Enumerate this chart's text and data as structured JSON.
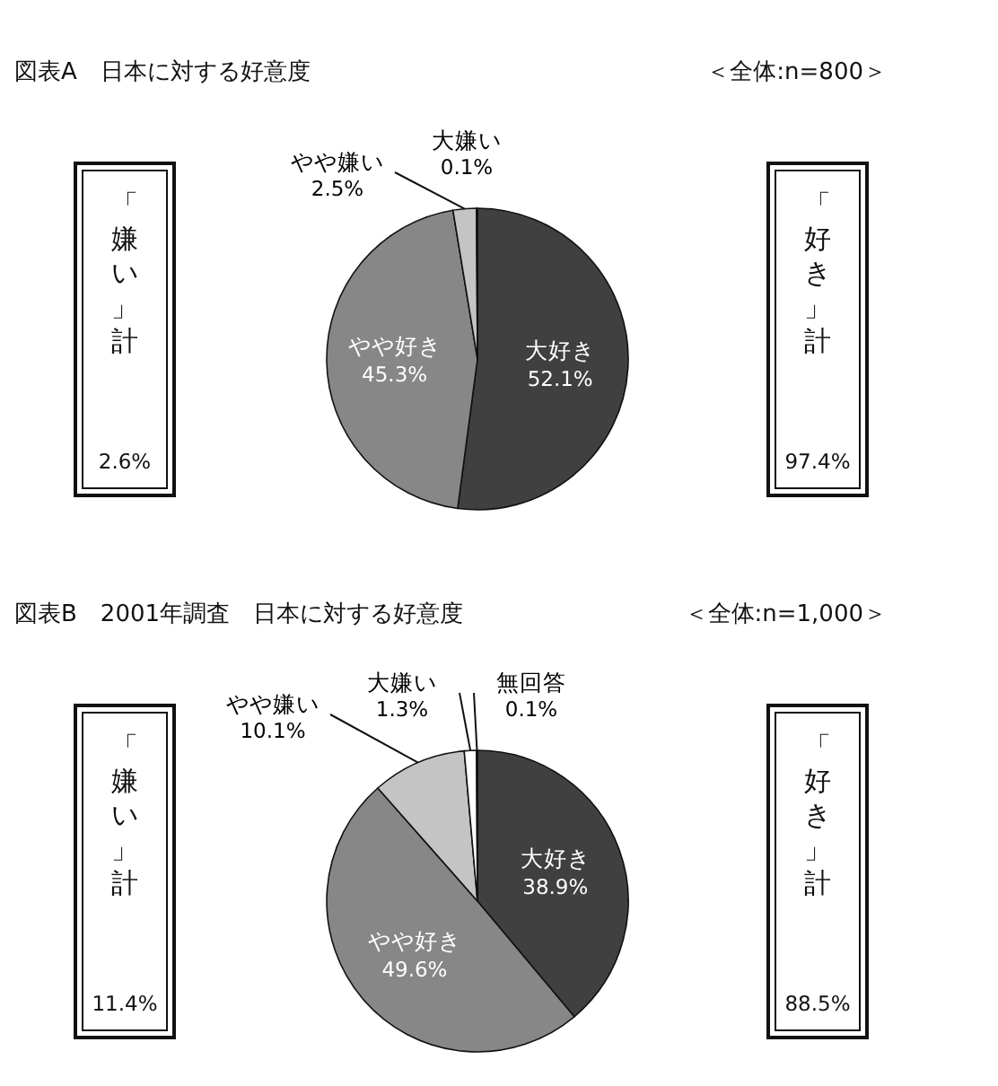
{
  "chart_data": [
    {
      "type": "pie",
      "title": "図表A　日本に対する好意度",
      "subtitle": "＜全体:n=800＞",
      "categories": [
        "大好き",
        "やや好き",
        "やや嫌い",
        "大嫌い"
      ],
      "values": [
        52.1,
        45.3,
        2.5,
        0.1
      ],
      "value_labels": [
        "52.1%",
        "45.3%",
        "2.5%",
        "0.1%"
      ],
      "colors": [
        "#404040",
        "#878787",
        "#c4c4c4",
        "#ffffff"
      ],
      "annotations": [
        "「嫌い」計",
        "2.6%",
        "「好き」計",
        "97.4%"
      ]
    },
    {
      "type": "pie",
      "title": "図表B　2001年調査　日本に対する好意度",
      "subtitle": "＜全体:n=1,000＞",
      "categories": [
        "大好き",
        "やや好き",
        "やや嫌い",
        "大嫌い",
        "無回答"
      ],
      "values": [
        38.9,
        49.6,
        10.1,
        1.3,
        0.1
      ],
      "value_labels": [
        "38.9%",
        "49.6%",
        "10.1%",
        "1.3%",
        "0.1%"
      ],
      "colors": [
        "#404040",
        "#878787",
        "#c4c4c4",
        "#ffffff",
        "#ffffff"
      ],
      "annotations": [
        "「嫌い」計",
        "11.4%",
        "「好き」計",
        "88.5%"
      ]
    }
  ]
}
